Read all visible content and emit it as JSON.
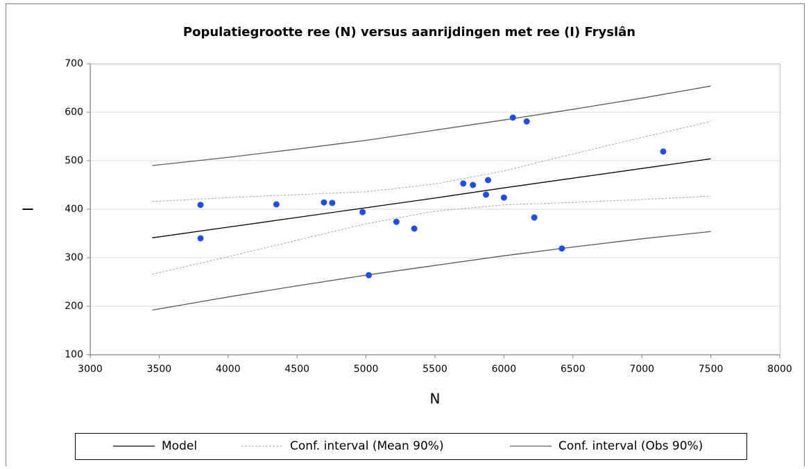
{
  "chart_data": {
    "type": "scatter",
    "title": "Populatiegrootte ree (N) versus aanrijdingen met ree (I) Fryslân",
    "x_label": "N",
    "y_label": "I",
    "xlim": [
      3000,
      8000
    ],
    "xticks": [
      3000,
      3500,
      4000,
      4500,
      5000,
      5500,
      6000,
      6500,
      7000,
      7500,
      8000
    ],
    "ylim": [
      100,
      700
    ],
    "yticks": [
      100,
      200,
      300,
      400,
      500,
      600,
      700
    ],
    "grid": true,
    "points": {
      "color": "#1f4ee0",
      "x": [
        3800,
        3800,
        4350,
        4695,
        4755,
        4975,
        5020,
        5220,
        5350,
        5705,
        5775,
        5870,
        5885,
        6000,
        6065,
        6165,
        6220,
        6420,
        7155
      ],
      "y": [
        409,
        340,
        410,
        414,
        413,
        394,
        264,
        374,
        360,
        453,
        450,
        430,
        460,
        424,
        589,
        581,
        383,
        319,
        519
      ]
    },
    "line_x": [
      3450,
      4000,
      4500,
      5000,
      5500,
      6000,
      6500,
      7000,
      7500
    ],
    "series": [
      {
        "name": "Model",
        "color": "#000000",
        "dash": false,
        "values": [
          341,
          363,
          383,
          403,
          423,
          444,
          464,
          484,
          504
        ]
      },
      {
        "name": "Conf. interval (Mean 90%)",
        "color": "#a6a6a6",
        "dash": true,
        "upper": [
          416,
          424,
          430,
          436,
          452,
          479,
          514,
          548,
          581
        ],
        "lower": [
          266,
          302,
          336,
          370,
          396,
          409,
          414,
          420,
          427
        ]
      },
      {
        "name": "Conf. interval (Obs 90%)",
        "color": "#595959",
        "dash": false,
        "upper": [
          490,
          507,
          524,
          542,
          563,
          584,
          606,
          629,
          654
        ],
        "lower": [
          192,
          219,
          242,
          264,
          284,
          304,
          322,
          339,
          354
        ]
      }
    ]
  }
}
